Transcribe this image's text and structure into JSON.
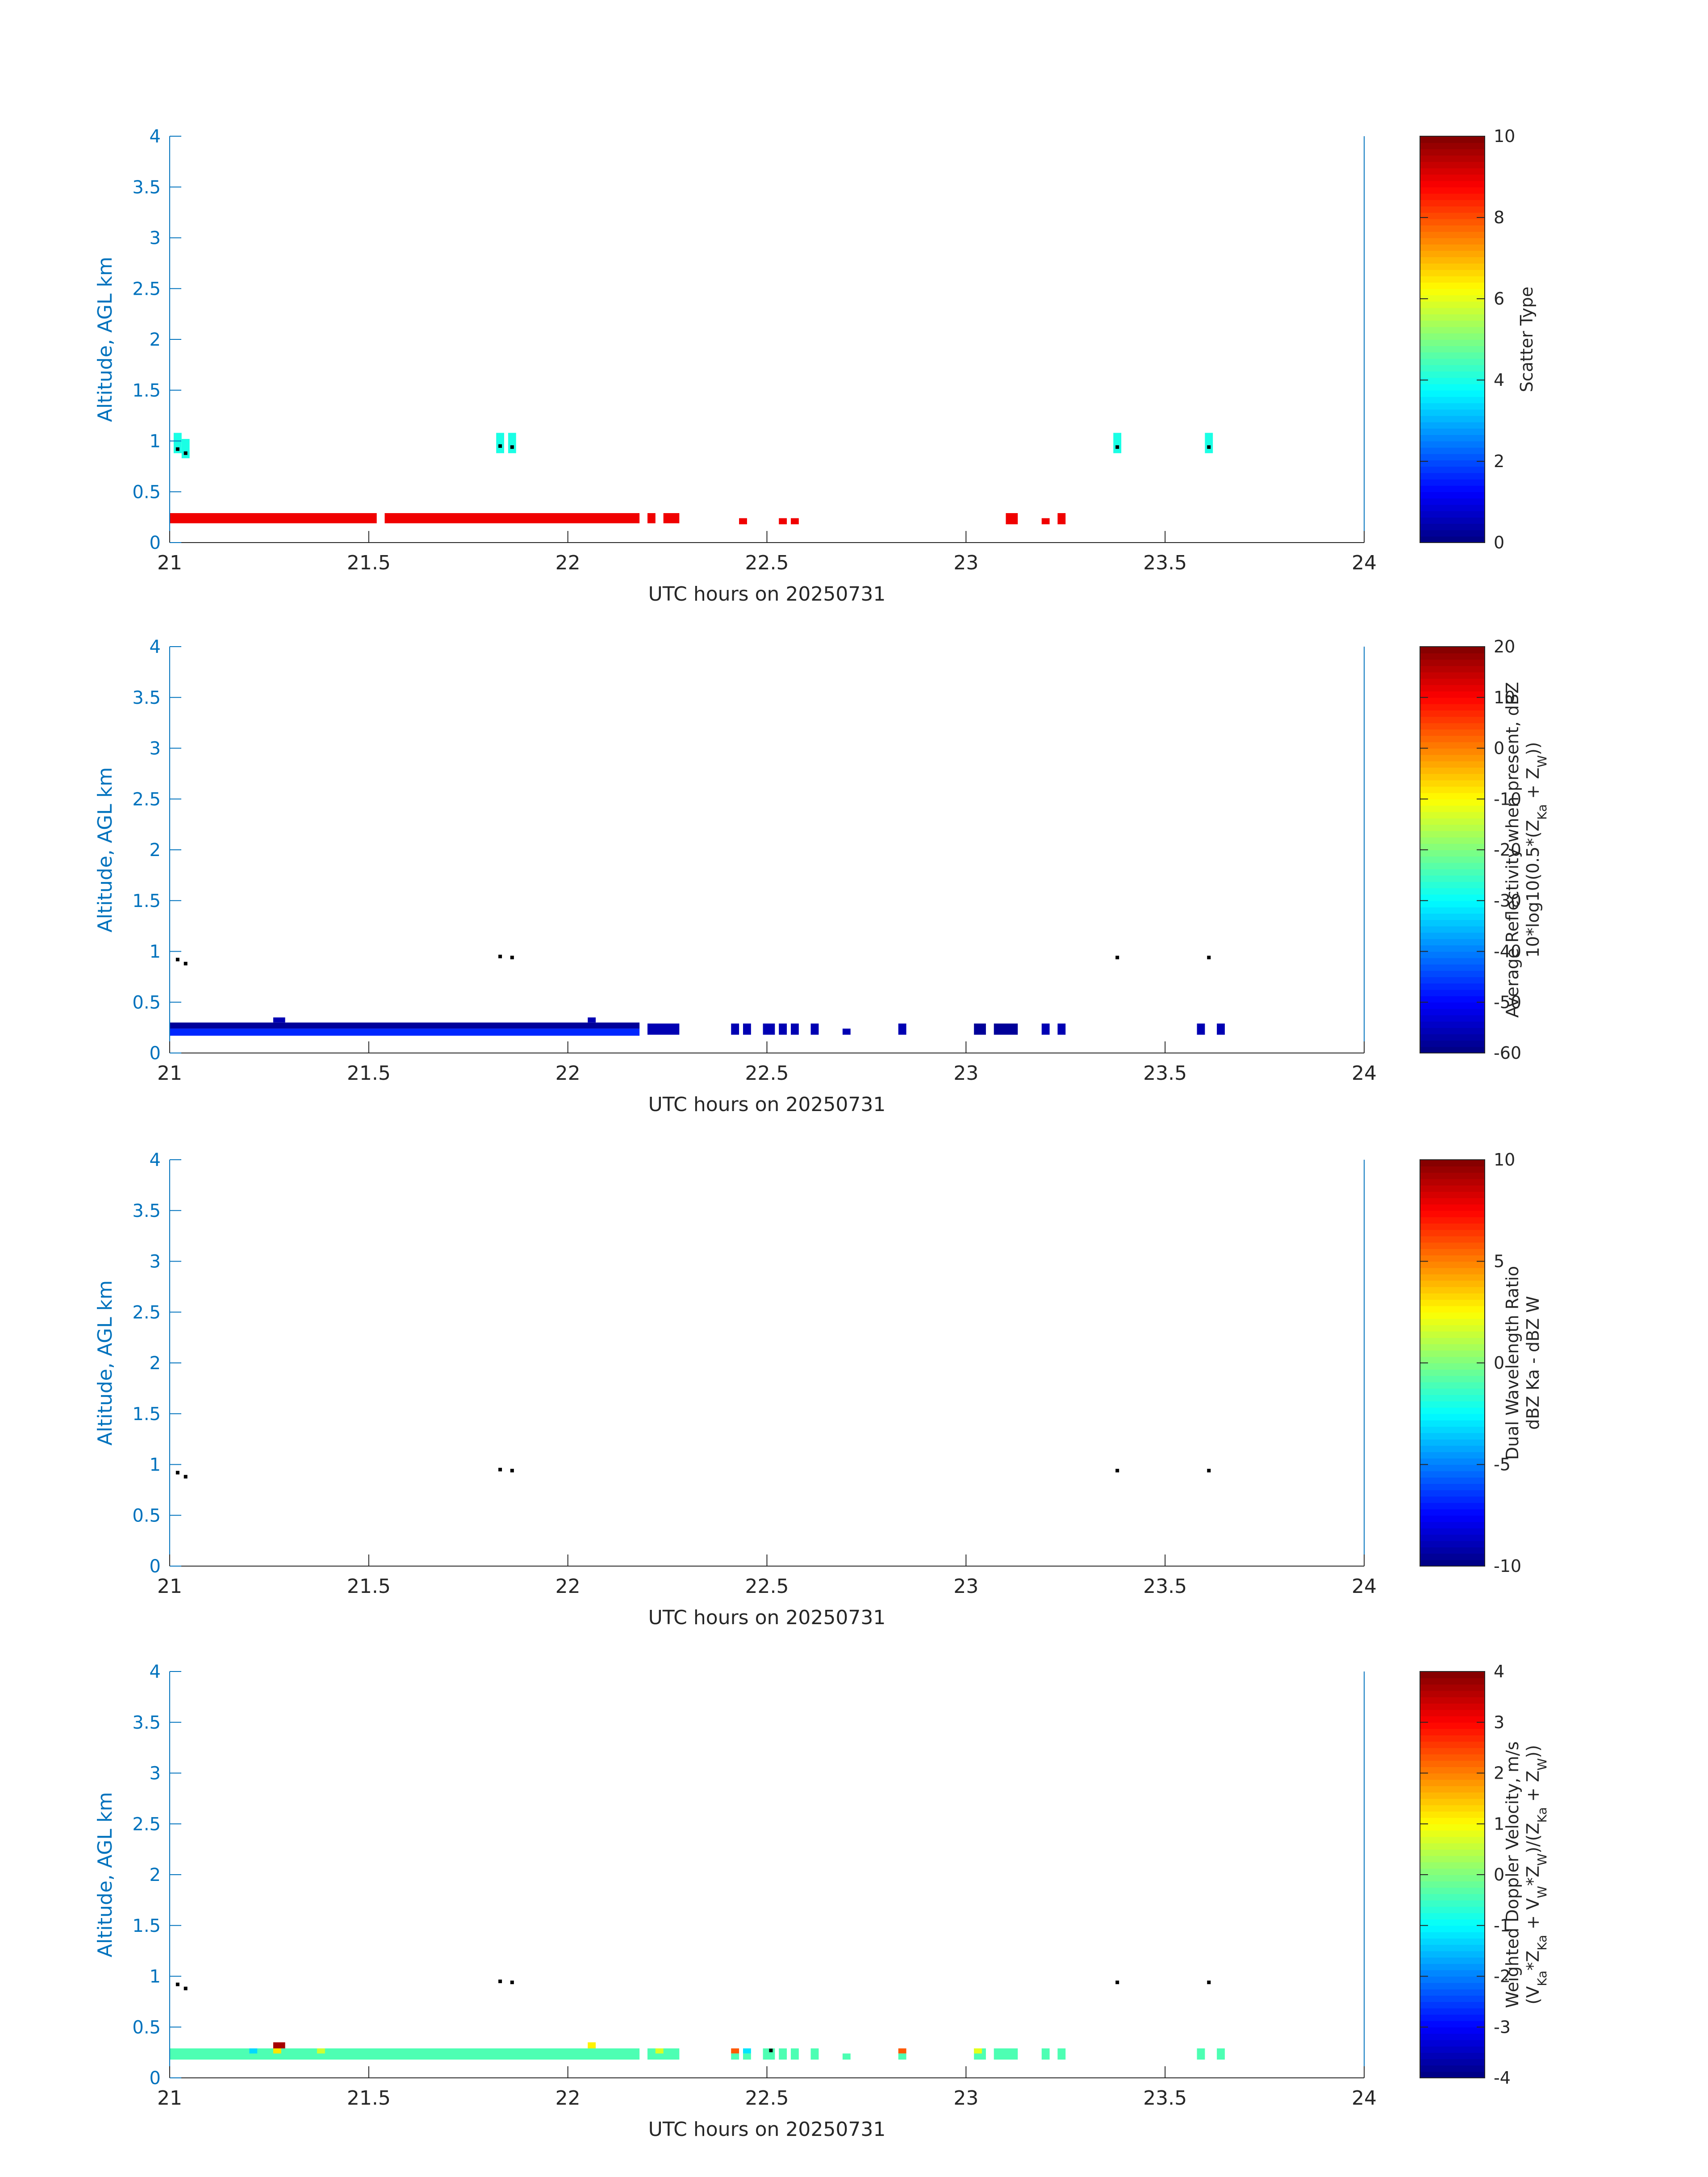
{
  "chart_data": [
    {
      "type": "heatmap",
      "ylabel": "Altitude, AGL km",
      "xlabel": "UTC hours on 20250731",
      "xlim": [
        21,
        24
      ],
      "ylim": [
        0,
        4
      ],
      "xticks": [
        "21",
        "21.5",
        "22",
        "22.5",
        "23",
        "23.5",
        "24"
      ],
      "yticks": [
        "0",
        "0.5",
        "1",
        "1.5",
        "2",
        "2.5",
        "3",
        "3.5",
        "4"
      ],
      "colorbar": {
        "label_lines": [
          "Scatter Type"
        ],
        "range": [
          0,
          10
        ],
        "ticks": [
          "0",
          "2",
          "4",
          "6",
          "8",
          "10"
        ],
        "colormap": "jet"
      },
      "cells": [
        {
          "x0": 21.0,
          "x1": 21.52,
          "y0": 0.19,
          "y1": 0.29,
          "value": 8.9
        },
        {
          "x0": 21.54,
          "x1": 22.18,
          "y0": 0.19,
          "y1": 0.29,
          "value": 8.9
        },
        {
          "x0": 22.2,
          "x1": 22.22,
          "y0": 0.19,
          "y1": 0.29,
          "value": 8.9
        },
        {
          "x0": 22.24,
          "x1": 22.28,
          "y0": 0.19,
          "y1": 0.29,
          "value": 8.9
        },
        {
          "x0": 22.43,
          "x1": 22.45,
          "y0": 0.18,
          "y1": 0.24,
          "value": 8.9
        },
        {
          "x0": 22.53,
          "x1": 22.55,
          "y0": 0.18,
          "y1": 0.24,
          "value": 8.9
        },
        {
          "x0": 22.56,
          "x1": 22.58,
          "y0": 0.18,
          "y1": 0.24,
          "value": 8.9
        },
        {
          "x0": 23.1,
          "x1": 23.13,
          "y0": 0.18,
          "y1": 0.29,
          "value": 8.9
        },
        {
          "x0": 23.19,
          "x1": 23.21,
          "y0": 0.18,
          "y1": 0.24,
          "value": 8.9
        },
        {
          "x0": 23.23,
          "x1": 23.25,
          "y0": 0.18,
          "y1": 0.29,
          "value": 8.9
        },
        {
          "x0": 21.01,
          "x1": 21.03,
          "y0": 0.88,
          "y1": 1.08,
          "value": 4.0
        },
        {
          "x0": 21.03,
          "x1": 21.05,
          "y0": 0.83,
          "y1": 1.02,
          "value": 4.0
        },
        {
          "x0": 21.82,
          "x1": 21.84,
          "y0": 0.88,
          "y1": 1.08,
          "value": 4.0
        },
        {
          "x0": 21.85,
          "x1": 21.87,
          "y0": 0.88,
          "y1": 1.08,
          "value": 4.0
        },
        {
          "x0": 23.37,
          "x1": 23.39,
          "y0": 0.88,
          "y1": 1.08,
          "value": 4.0
        },
        {
          "x0": 23.6,
          "x1": 23.62,
          "y0": 0.88,
          "y1": 1.08,
          "value": 4.0
        }
      ],
      "markers": [
        {
          "x": 21.02,
          "y": 0.92
        },
        {
          "x": 21.04,
          "y": 0.88
        },
        {
          "x": 21.83,
          "y": 0.95
        },
        {
          "x": 21.86,
          "y": 0.94
        },
        {
          "x": 23.38,
          "y": 0.94
        },
        {
          "x": 23.61,
          "y": 0.94
        }
      ]
    },
    {
      "type": "heatmap",
      "ylabel": "Altitude, AGL km",
      "xlabel": "UTC hours on 20250731",
      "xlim": [
        21,
        24
      ],
      "ylim": [
        0,
        4
      ],
      "xticks": [
        "21",
        "21.5",
        "22",
        "22.5",
        "23",
        "23.5",
        "24"
      ],
      "yticks": [
        "0",
        "0.5",
        "1",
        "1.5",
        "2",
        "2.5",
        "3",
        "3.5",
        "4"
      ],
      "colorbar": {
        "label_lines": [
          "Average Reflectivity when present, dBZ",
          "10*log10(0.5*(Z_Ka + Z_W))"
        ],
        "range": [
          -60,
          20
        ],
        "ticks": [
          "-60",
          "-50",
          "-40",
          "-30",
          "-20",
          "-10",
          "0",
          "10",
          "20"
        ],
        "colormap": "jet"
      },
      "cells": [
        {
          "x0": 21.0,
          "x1": 22.18,
          "y0": 0.24,
          "y1": 0.3,
          "value": -58
        },
        {
          "x0": 21.0,
          "x1": 22.18,
          "y0": 0.17,
          "y1": 0.24,
          "value": -47
        },
        {
          "x0": 21.26,
          "x1": 21.29,
          "y0": 0.3,
          "y1": 0.35,
          "value": -56
        },
        {
          "x0": 22.05,
          "x1": 22.07,
          "y0": 0.3,
          "y1": 0.35,
          "value": -56
        },
        {
          "x0": 22.2,
          "x1": 22.28,
          "y0": 0.18,
          "y1": 0.29,
          "value": -56
        },
        {
          "x0": 22.41,
          "x1": 22.43,
          "y0": 0.18,
          "y1": 0.29,
          "value": -56
        },
        {
          "x0": 22.44,
          "x1": 22.46,
          "y0": 0.18,
          "y1": 0.29,
          "value": -56
        },
        {
          "x0": 22.49,
          "x1": 22.52,
          "y0": 0.18,
          "y1": 0.29,
          "value": -56
        },
        {
          "x0": 22.53,
          "x1": 22.55,
          "y0": 0.18,
          "y1": 0.29,
          "value": -56
        },
        {
          "x0": 22.56,
          "x1": 22.58,
          "y0": 0.18,
          "y1": 0.29,
          "value": -56
        },
        {
          "x0": 22.61,
          "x1": 22.63,
          "y0": 0.18,
          "y1": 0.29,
          "value": -56
        },
        {
          "x0": 22.69,
          "x1": 22.71,
          "y0": 0.18,
          "y1": 0.24,
          "value": -56
        },
        {
          "x0": 22.83,
          "x1": 22.85,
          "y0": 0.18,
          "y1": 0.29,
          "value": -56
        },
        {
          "x0": 23.02,
          "x1": 23.05,
          "y0": 0.18,
          "y1": 0.29,
          "value": -58
        },
        {
          "x0": 23.07,
          "x1": 23.13,
          "y0": 0.18,
          "y1": 0.29,
          "value": -58
        },
        {
          "x0": 23.19,
          "x1": 23.21,
          "y0": 0.18,
          "y1": 0.29,
          "value": -56
        },
        {
          "x0": 23.23,
          "x1": 23.25,
          "y0": 0.18,
          "y1": 0.29,
          "value": -56
        },
        {
          "x0": 23.58,
          "x1": 23.6,
          "y0": 0.18,
          "y1": 0.29,
          "value": -56
        },
        {
          "x0": 23.63,
          "x1": 23.65,
          "y0": 0.18,
          "y1": 0.29,
          "value": -56
        }
      ],
      "markers": [
        {
          "x": 21.02,
          "y": 0.92
        },
        {
          "x": 21.04,
          "y": 0.88
        },
        {
          "x": 21.83,
          "y": 0.95
        },
        {
          "x": 21.86,
          "y": 0.94
        },
        {
          "x": 23.38,
          "y": 0.94
        },
        {
          "x": 23.61,
          "y": 0.94
        }
      ]
    },
    {
      "type": "heatmap",
      "ylabel": "Altitude, AGL km",
      "xlabel": "UTC hours on 20250731",
      "xlim": [
        21,
        24
      ],
      "ylim": [
        0,
        4
      ],
      "xticks": [
        "21",
        "21.5",
        "22",
        "22.5",
        "23",
        "23.5",
        "24"
      ],
      "yticks": [
        "0",
        "0.5",
        "1",
        "1.5",
        "2",
        "2.5",
        "3",
        "3.5",
        "4"
      ],
      "colorbar": {
        "label_lines": [
          "Dual Wavelength Ratio",
          "dBZ Ka - dBZ W"
        ],
        "range": [
          -10,
          10
        ],
        "ticks": [
          "-10",
          "-5",
          "0",
          "5",
          "10"
        ],
        "colormap": "jet"
      },
      "cells": [],
      "markers": [
        {
          "x": 21.02,
          "y": 0.92
        },
        {
          "x": 21.04,
          "y": 0.88
        },
        {
          "x": 21.83,
          "y": 0.95
        },
        {
          "x": 21.86,
          "y": 0.94
        },
        {
          "x": 23.38,
          "y": 0.94
        },
        {
          "x": 23.61,
          "y": 0.94
        }
      ]
    },
    {
      "type": "heatmap",
      "ylabel": "Altitude, AGL km",
      "xlabel": "UTC hours on 20250731",
      "xlim": [
        21,
        24
      ],
      "ylim": [
        0,
        4
      ],
      "xticks": [
        "21",
        "21.5",
        "22",
        "22.5",
        "23",
        "23.5",
        "24"
      ],
      "yticks": [
        "0",
        "0.5",
        "1",
        "1.5",
        "2",
        "2.5",
        "3",
        "3.5",
        "4"
      ],
      "colorbar": {
        "label_lines": [
          "Weighted Doppler Velocity, m/s",
          "(V_Ka*Z_Ka + V_W*Z_W)/(Z_Ka + Z_W))"
        ],
        "range": [
          -4,
          4
        ],
        "ticks": [
          "-4",
          "-3",
          "-2",
          "-1",
          "0",
          "1",
          "2",
          "3",
          "4"
        ],
        "colormap": "jet"
      },
      "cells": [
        {
          "x0": 21.0,
          "x1": 22.18,
          "y0": 0.18,
          "y1": 0.29,
          "value": -0.4
        },
        {
          "x0": 21.2,
          "x1": 21.22,
          "y0": 0.24,
          "y1": 0.29,
          "value": -1.3
        },
        {
          "x0": 21.26,
          "x1": 21.29,
          "y0": 0.29,
          "y1": 0.35,
          "value": 3.7
        },
        {
          "x0": 21.26,
          "x1": 21.28,
          "y0": 0.24,
          "y1": 0.29,
          "value": 1.2
        },
        {
          "x0": 21.37,
          "x1": 21.39,
          "y0": 0.24,
          "y1": 0.29,
          "value": 0.6
        },
        {
          "x0": 22.05,
          "x1": 22.07,
          "y0": 0.29,
          "y1": 0.35,
          "value": 1.1
        },
        {
          "x0": 22.2,
          "x1": 22.28,
          "y0": 0.18,
          "y1": 0.29,
          "value": -0.4
        },
        {
          "x0": 22.22,
          "x1": 22.24,
          "y0": 0.24,
          "y1": 0.29,
          "value": 0.7
        },
        {
          "x0": 22.41,
          "x1": 22.43,
          "y0": 0.24,
          "y1": 0.29,
          "value": 2.3
        },
        {
          "x0": 22.41,
          "x1": 22.43,
          "y0": 0.18,
          "y1": 0.24,
          "value": -0.4
        },
        {
          "x0": 22.44,
          "x1": 22.46,
          "y0": 0.24,
          "y1": 0.29,
          "value": -1.2
        },
        {
          "x0": 22.44,
          "x1": 22.46,
          "y0": 0.18,
          "y1": 0.24,
          "value": -0.4
        },
        {
          "x0": 22.49,
          "x1": 22.52,
          "y0": 0.18,
          "y1": 0.29,
          "value": -0.4
        },
        {
          "x0": 22.53,
          "x1": 22.55,
          "y0": 0.18,
          "y1": 0.29,
          "value": -0.4
        },
        {
          "x0": 22.56,
          "x1": 22.58,
          "y0": 0.18,
          "y1": 0.29,
          "value": -0.4
        },
        {
          "x0": 22.61,
          "x1": 22.63,
          "y0": 0.18,
          "y1": 0.29,
          "value": -0.4
        },
        {
          "x0": 22.69,
          "x1": 22.71,
          "y0": 0.18,
          "y1": 0.24,
          "value": -0.4
        },
        {
          "x0": 22.83,
          "x1": 22.85,
          "y0": 0.24,
          "y1": 0.29,
          "value": 2.3
        },
        {
          "x0": 22.83,
          "x1": 22.85,
          "y0": 0.18,
          "y1": 0.24,
          "value": -0.4
        },
        {
          "x0": 23.02,
          "x1": 23.05,
          "y0": 0.18,
          "y1": 0.29,
          "value": -0.4
        },
        {
          "x0": 23.02,
          "x1": 23.04,
          "y0": 0.24,
          "y1": 0.29,
          "value": 0.8
        },
        {
          "x0": 23.07,
          "x1": 23.13,
          "y0": 0.18,
          "y1": 0.29,
          "value": -0.4
        },
        {
          "x0": 23.19,
          "x1": 23.21,
          "y0": 0.18,
          "y1": 0.29,
          "value": -0.4
        },
        {
          "x0": 23.23,
          "x1": 23.25,
          "y0": 0.18,
          "y1": 0.29,
          "value": -0.4
        },
        {
          "x0": 23.58,
          "x1": 23.6,
          "y0": 0.18,
          "y1": 0.29,
          "value": -0.4
        },
        {
          "x0": 23.63,
          "x1": 23.65,
          "y0": 0.18,
          "y1": 0.29,
          "value": -0.4
        }
      ],
      "markers": [
        {
          "x": 21.02,
          "y": 0.92
        },
        {
          "x": 21.04,
          "y": 0.88
        },
        {
          "x": 21.83,
          "y": 0.95
        },
        {
          "x": 21.86,
          "y": 0.94
        },
        {
          "x": 22.51,
          "y": 0.27
        },
        {
          "x": 23.38,
          "y": 0.94
        },
        {
          "x": 23.61,
          "y": 0.94
        }
      ]
    }
  ],
  "colors": {
    "axes": "#0072BD",
    "text": "#262626",
    "marker": "#000000"
  }
}
